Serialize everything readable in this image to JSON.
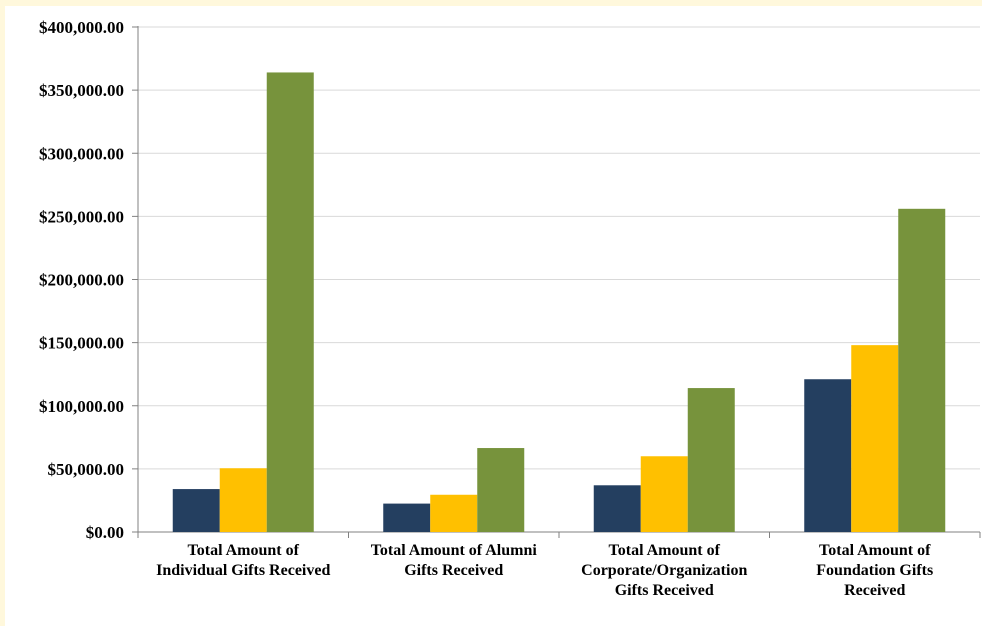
{
  "chart_data": {
    "type": "bar",
    "categories": [
      [
        "Total Amount of",
        "Individual Gifts Received"
      ],
      [
        "Total Amount of Alumni",
        "Gifts Received"
      ],
      [
        "Total Amount of",
        "Corporate/Organization",
        "Gifts Received"
      ],
      [
        "Total Amount of",
        "Foundation Gifts",
        "Received"
      ]
    ],
    "series": [
      {
        "color": "#243f60",
        "values": [
          34000,
          22500,
          37000,
          121000
        ]
      },
      {
        "color": "#ffc000",
        "values": [
          50500,
          29500,
          60000,
          148000
        ]
      },
      {
        "color": "#77933c",
        "values": [
          364000,
          66500,
          114000,
          256000
        ]
      }
    ],
    "ylim": [
      0,
      400000
    ],
    "yticks": [
      0,
      50000,
      100000,
      150000,
      200000,
      250000,
      300000,
      350000,
      400000
    ],
    "ytick_labels": [
      "$0.00",
      "$50,000.00",
      "$100,000.00",
      "$150,000.00",
      "$200,000.00",
      "$250,000.00",
      "$300,000.00",
      "$350,000.00",
      "$400,000.00"
    ],
    "grid": true,
    "legend": "none",
    "title": "",
    "xlabel": "",
    "ylabel": ""
  }
}
